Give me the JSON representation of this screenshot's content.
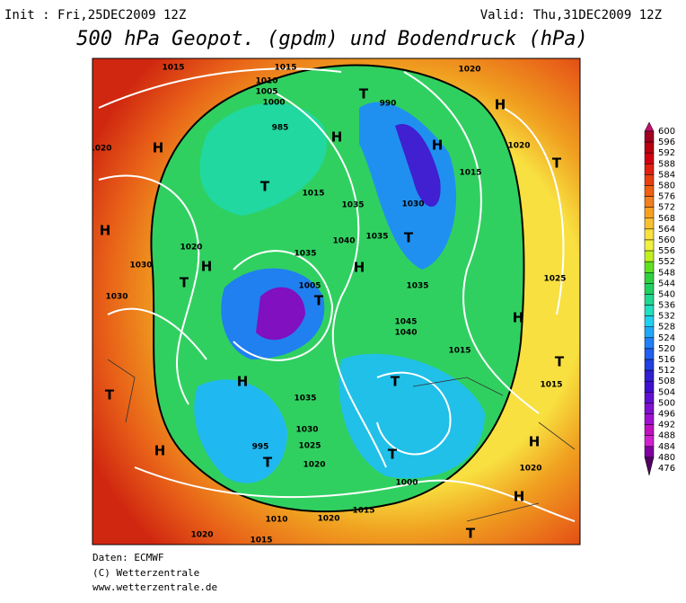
{
  "header": {
    "init": "Init : Fri,25DEC2009 12Z",
    "valid": "Valid: Thu,31DEC2009 12Z",
    "title": "500 hPa Geopot. (gpdm) und Bodendruck (hPa)"
  },
  "colorbar": {
    "levels": [
      600,
      596,
      592,
      588,
      584,
      580,
      576,
      572,
      568,
      564,
      560,
      556,
      552,
      548,
      544,
      540,
      536,
      532,
      528,
      524,
      520,
      516,
      512,
      508,
      504,
      500,
      496,
      492,
      488,
      484,
      480,
      476
    ],
    "colors": [
      "#c0106a",
      "#a00020",
      "#b80010",
      "#d00010",
      "#e02010",
      "#e84010",
      "#f06010",
      "#f08020",
      "#f8a020",
      "#f8c030",
      "#f8e040",
      "#f0f040",
      "#c0f020",
      "#60e020",
      "#30d040",
      "#20d060",
      "#20d890",
      "#20e0c0",
      "#20d0f0",
      "#20a8f8",
      "#2080f8",
      "#2060f0",
      "#2040e0",
      "#3020d0",
      "#4010d0",
      "#6010d0",
      "#8010d0",
      "#a010d0",
      "#c010c0",
      "#d020d0",
      "#8000a0",
      "#500060"
    ]
  },
  "map_labels": [
    "1015",
    "1015",
    "1020",
    "1010",
    "1005",
    "1000",
    "990",
    "T",
    "H",
    "H",
    "985",
    "H",
    "H",
    "1020",
    "1015",
    "T",
    "1020",
    "T",
    "1015",
    "1035",
    "1030",
    "H",
    "1020",
    "T",
    "1040",
    "1035",
    "H",
    "1035",
    "H",
    "1035",
    "T",
    "1005",
    "T",
    "1030",
    "1030",
    "H",
    "1045",
    "1040",
    "1015",
    "T",
    "T",
    "H",
    "1035",
    "1030",
    "1025",
    "T",
    "995",
    "T",
    "H",
    "1020",
    "T",
    "1000",
    "1015",
    "1010",
    "1020",
    "1020",
    "1015",
    "T",
    "H",
    "1020",
    "H",
    "1015",
    "1025"
  ],
  "footer": [
    "Daten: ECMWF",
    "(C) Wetterzentrale",
    "www.wetterzentrale.de"
  ]
}
